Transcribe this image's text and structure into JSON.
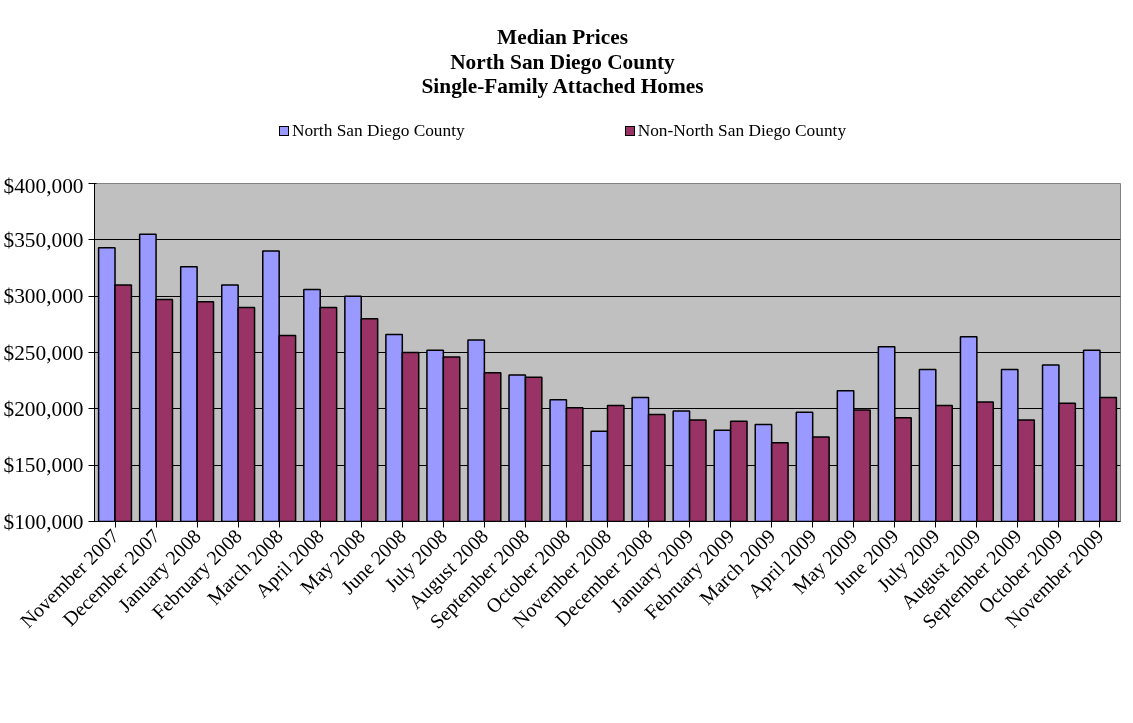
{
  "chart_data": {
    "type": "bar",
    "title": "Median Prices\nNorth San Diego County\nSingle-Family Attached Homes",
    "categories": [
      "November 2007",
      "December 2007",
      "January 2008",
      "February 2008",
      "March 2008",
      "April 2008",
      "May 2008",
      "June 2008",
      "July 2008",
      "August 2008",
      "September 2008",
      "October 2008",
      "November 2008",
      "December 2008",
      "January 2009",
      "February 2009",
      "March 2009",
      "April 2009",
      "May 2009",
      "June 2009",
      "July 2009",
      "August 2009",
      "September 2009",
      "October 2009",
      "November 2009"
    ],
    "series": [
      {
        "name": "North San Diego County",
        "color": "#9999ff",
        "values": [
          343000,
          355000,
          326000,
          310000,
          340000,
          306000,
          300000,
          266000,
          252000,
          261000,
          230000,
          208000,
          180000,
          210000,
          198000,
          181000,
          186000,
          197000,
          216000,
          255000,
          235000,
          264000,
          235000,
          239000,
          252000
        ]
      },
      {
        "name": "Non-North San Diego County",
        "color": "#993366",
        "values": [
          310000,
          297000,
          295000,
          290000,
          265000,
          290000,
          280000,
          250000,
          246000,
          232000,
          228000,
          201000,
          203000,
          195000,
          190000,
          189000,
          170000,
          175000,
          199000,
          192000,
          203000,
          206000,
          190000,
          205000,
          210000
        ]
      }
    ],
    "ylim": [
      100000,
      400000
    ],
    "yticks": [
      {
        "value": 100000,
        "label": "$100,000"
      },
      {
        "value": 150000,
        "label": "$150,000"
      },
      {
        "value": 200000,
        "label": "$200,000"
      },
      {
        "value": 250000,
        "label": "$250,000"
      },
      {
        "value": 300000,
        "label": "$300,000"
      },
      {
        "value": 350000,
        "label": "$350,000"
      },
      {
        "value": 400000,
        "label": "$400,000"
      }
    ],
    "grid": "y",
    "legend": "top"
  }
}
